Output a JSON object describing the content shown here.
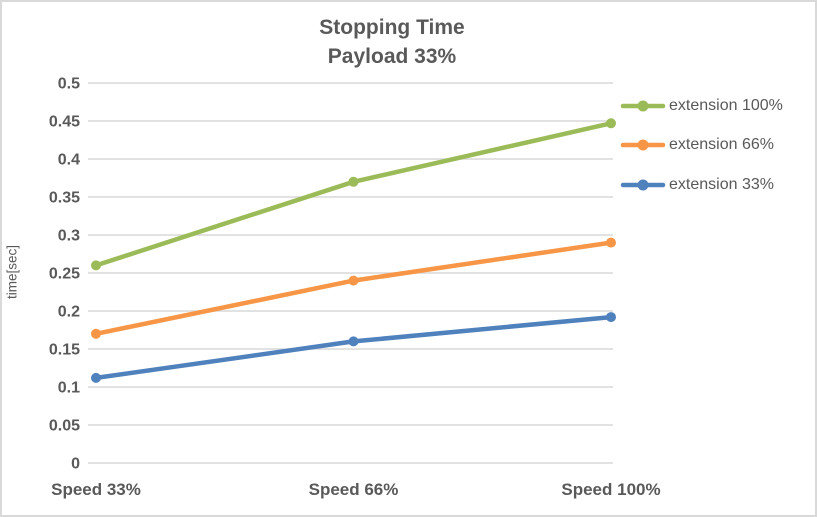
{
  "window": {
    "background": "#ffffff",
    "border_color": "#d9d9d9"
  },
  "chart_data": {
    "type": "line",
    "title": "Stopping Time",
    "subtitle": "Payload 33%",
    "categories": [
      "Speed 33%",
      "Speed 66%",
      "Speed 100%"
    ],
    "series": [
      {
        "name": "extension 100%",
        "color": "#9bbb59",
        "marker": "circle",
        "values": [
          0.26,
          0.37,
          0.447
        ]
      },
      {
        "name": "extension 66%",
        "color": "#f79646",
        "marker": "circle",
        "values": [
          0.17,
          0.24,
          0.29
        ]
      },
      {
        "name": "extension 33%",
        "color": "#4f81bd",
        "marker": "circle",
        "values": [
          0.112,
          0.16,
          0.192
        ]
      }
    ],
    "xlabel": "",
    "ylabel": "time[sec]",
    "ylim": [
      0,
      0.5
    ],
    "yticks": [
      "0",
      "0.05",
      "0.1",
      "0.15",
      "0.2",
      "0.25",
      "0.3",
      "0.35",
      "0.4",
      "0.45",
      "0.5"
    ],
    "grid": "horizontal-only",
    "gridline_color": "#d9d9d9",
    "text_color": "#595959",
    "legend_position": "right"
  }
}
